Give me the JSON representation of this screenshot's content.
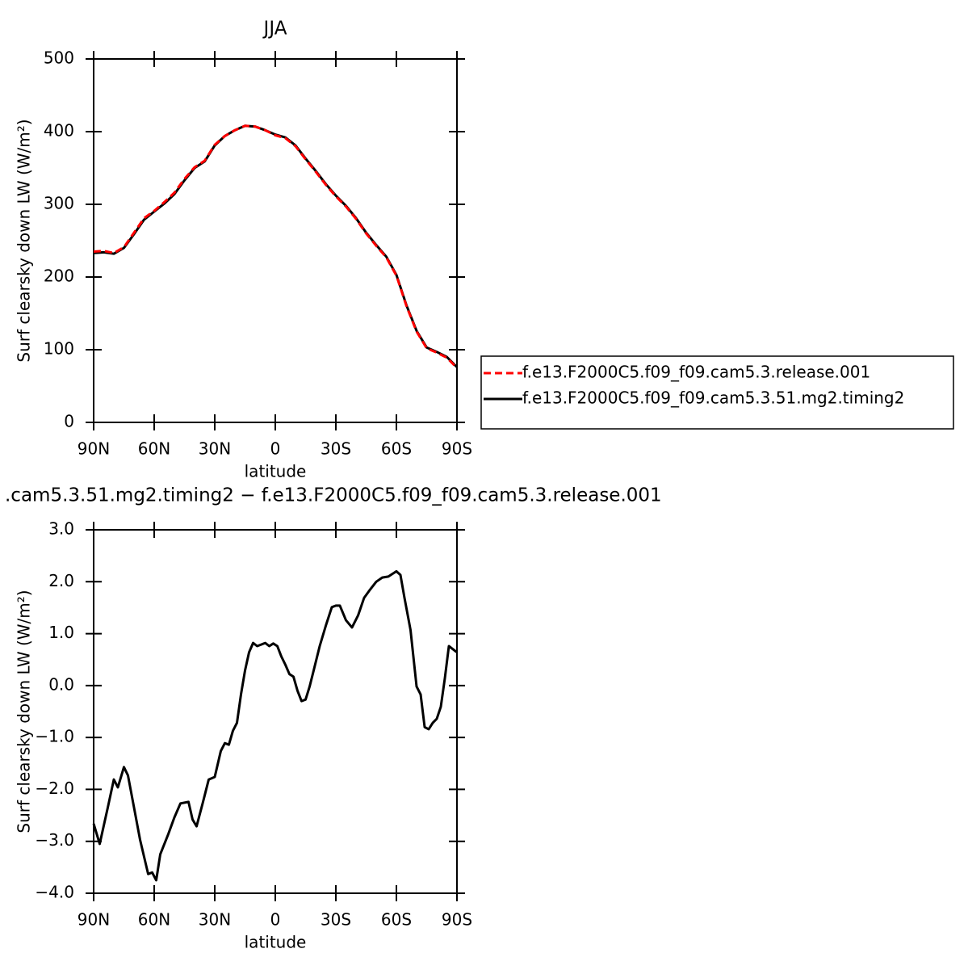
{
  "chart_data": [
    {
      "type": "line",
      "title": "JJA",
      "xlabel": "latitude",
      "ylabel": "Surf clearsky down LW (W/m²)",
      "x": [
        90,
        85,
        80,
        75,
        70,
        65,
        60,
        55,
        50,
        45,
        40,
        35,
        30,
        25,
        20,
        15,
        10,
        5,
        0,
        -5,
        -10,
        -15,
        -20,
        -25,
        -30,
        -35,
        -40,
        -45,
        -50,
        -55,
        -60,
        -65,
        -70,
        -75,
        -80,
        -85,
        -90
      ],
      "series": [
        {
          "name": "f.e13.F2000C5.f09_f09.cam5.3.release.001",
          "color": "#ff0000",
          "line_style": "dashed",
          "values": [
            235,
            236,
            233,
            241,
            261,
            281,
            291,
            303,
            316,
            335,
            351,
            360,
            382,
            394,
            402,
            408,
            407,
            402,
            395,
            391,
            380,
            362,
            345,
            327,
            311,
            297,
            280,
            260,
            243,
            227,
            202,
            160,
            125,
            102,
            96,
            89,
            75
          ]
        },
        {
          "name": "f.e13.F2000C5.f09_f09.cam5.3.51.mg2.timing2",
          "color": "#000000",
          "line_style": "solid",
          "values": [
            233,
            234,
            232,
            240,
            259,
            279,
            290,
            301,
            314,
            333,
            350,
            359,
            381,
            394,
            402,
            408,
            407,
            402,
            396,
            392,
            381,
            363,
            346,
            328,
            312,
            298,
            281,
            261,
            244,
            228,
            203,
            161,
            126,
            103,
            97,
            90,
            76
          ]
        }
      ],
      "xlim": [
        90,
        -90
      ],
      "xticks": [
        {
          "value": 90,
          "label": "90N"
        },
        {
          "value": 60,
          "label": "60N"
        },
        {
          "value": 30,
          "label": "30N"
        },
        0,
        {
          "value": -30,
          "label": "30S"
        },
        {
          "value": -60,
          "label": "60S"
        },
        {
          "value": -90,
          "label": "90S"
        }
      ],
      "ylim": [
        0,
        500
      ],
      "yticks": [
        0,
        100,
        200,
        300,
        400,
        500
      ],
      "legend": "right"
    },
    {
      "type": "line",
      "title": ".cam5.3.51.mg2.timing2 − f.e13.F2000C5.f09_f09.cam5.3.release.001",
      "xlabel": "latitude",
      "ylabel": "Surf clearsky down LW (W/m²)",
      "x": [
        90,
        87,
        83,
        80,
        78,
        75,
        73,
        70,
        67,
        63,
        61,
        59,
        57,
        53,
        50,
        47,
        43,
        41,
        39,
        36,
        33,
        30,
        27,
        25,
        23,
        21,
        19,
        17,
        15,
        13,
        11,
        9,
        7,
        5,
        3,
        1,
        -1,
        -3,
        -5,
        -7,
        -9,
        -11,
        -13,
        -15,
        -17,
        -19,
        -22,
        -25,
        -28,
        -30,
        -32,
        -35,
        -38,
        -41,
        -44,
        -47,
        -50,
        -53,
        -56,
        -60,
        -62,
        -64,
        -67,
        -70,
        -72,
        -74,
        -76,
        -78,
        -80,
        -82,
        -84,
        -86,
        -90
      ],
      "values": [
        -2.66,
        -3.05,
        -2.35,
        -1.81,
        -1.96,
        -1.57,
        -1.73,
        -2.35,
        -2.97,
        -3.63,
        -3.6,
        -3.75,
        -3.25,
        -2.86,
        -2.54,
        -2.27,
        -2.24,
        -2.58,
        -2.71,
        -2.27,
        -1.81,
        -1.76,
        -1.26,
        -1.11,
        -1.14,
        -0.87,
        -0.72,
        -0.17,
        0.29,
        0.64,
        0.82,
        0.76,
        0.79,
        0.82,
        0.76,
        0.81,
        0.76,
        0.56,
        0.4,
        0.22,
        0.17,
        -0.1,
        -0.3,
        -0.27,
        -0.02,
        0.29,
        0.76,
        1.15,
        1.51,
        1.54,
        1.54,
        1.26,
        1.12,
        1.35,
        1.69,
        1.85,
        2.0,
        2.08,
        2.1,
        2.2,
        2.13,
        1.69,
        1.07,
        -0.02,
        -0.17,
        -0.8,
        -0.84,
        -0.72,
        -0.64,
        -0.41,
        0.14,
        0.76,
        0.64
      ],
      "color": "#000000",
      "xlim": [
        90,
        -90
      ],
      "xticks": [
        {
          "value": 90,
          "label": "90N"
        },
        {
          "value": 60,
          "label": "60N"
        },
        {
          "value": 30,
          "label": "30N"
        },
        0,
        {
          "value": -30,
          "label": "30S"
        },
        {
          "value": -60,
          "label": "60S"
        },
        {
          "value": -90,
          "label": "90S"
        }
      ],
      "ylim": [
        -4.0,
        3.0
      ],
      "yticks": [
        {
          "value": -4.0,
          "label": "−4.0"
        },
        {
          "value": -3.0,
          "label": "−3.0"
        },
        {
          "value": -2.0,
          "label": "−2.0"
        },
        {
          "value": -1.0,
          "label": "−1.0"
        },
        {
          "value": 0.0,
          "label": "0.0"
        },
        {
          "value": 1.0,
          "label": "1.0"
        },
        {
          "value": 2.0,
          "label": "2.0"
        },
        {
          "value": 3.0,
          "label": "3.0"
        }
      ]
    }
  ]
}
